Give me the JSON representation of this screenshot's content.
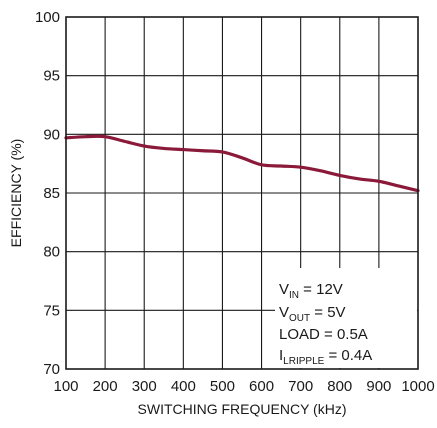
{
  "chart_data": {
    "type": "line",
    "title": "",
    "xlabel": "SWITCHING FREQUENCY (kHz)",
    "ylabel": "EFFICIENCY (%)",
    "xlim": [
      100,
      1000
    ],
    "ylim": [
      70,
      100
    ],
    "xticks": [
      100,
      200,
      300,
      400,
      500,
      600,
      700,
      800,
      900,
      1000
    ],
    "yticks": [
      70,
      75,
      80,
      85,
      90,
      95,
      100
    ],
    "grid": true,
    "series": [
      {
        "color": "#8b1a3a",
        "x": [
          100,
          150,
          200,
          250,
          300,
          350,
          400,
          450,
          500,
          550,
          600,
          650,
          700,
          750,
          800,
          850,
          900,
          950,
          1000
        ],
        "y": [
          89.7,
          89.8,
          89.8,
          89.4,
          89.0,
          88.8,
          88.7,
          88.6,
          88.5,
          88.0,
          87.4,
          87.3,
          87.2,
          86.9,
          86.5,
          86.2,
          86.0,
          85.6,
          85.2
        ]
      }
    ],
    "annotations": [
      {
        "main": "V",
        "sub": "IN",
        "rest": " = 12V"
      },
      {
        "main": "V",
        "sub": "OUT",
        "rest": " = 5V"
      },
      {
        "main": "LOAD = 0.5A",
        "sub": "",
        "rest": ""
      },
      {
        "main": "I",
        "sub": "LRIPPLE",
        "rest": " = 0.4A"
      }
    ]
  }
}
